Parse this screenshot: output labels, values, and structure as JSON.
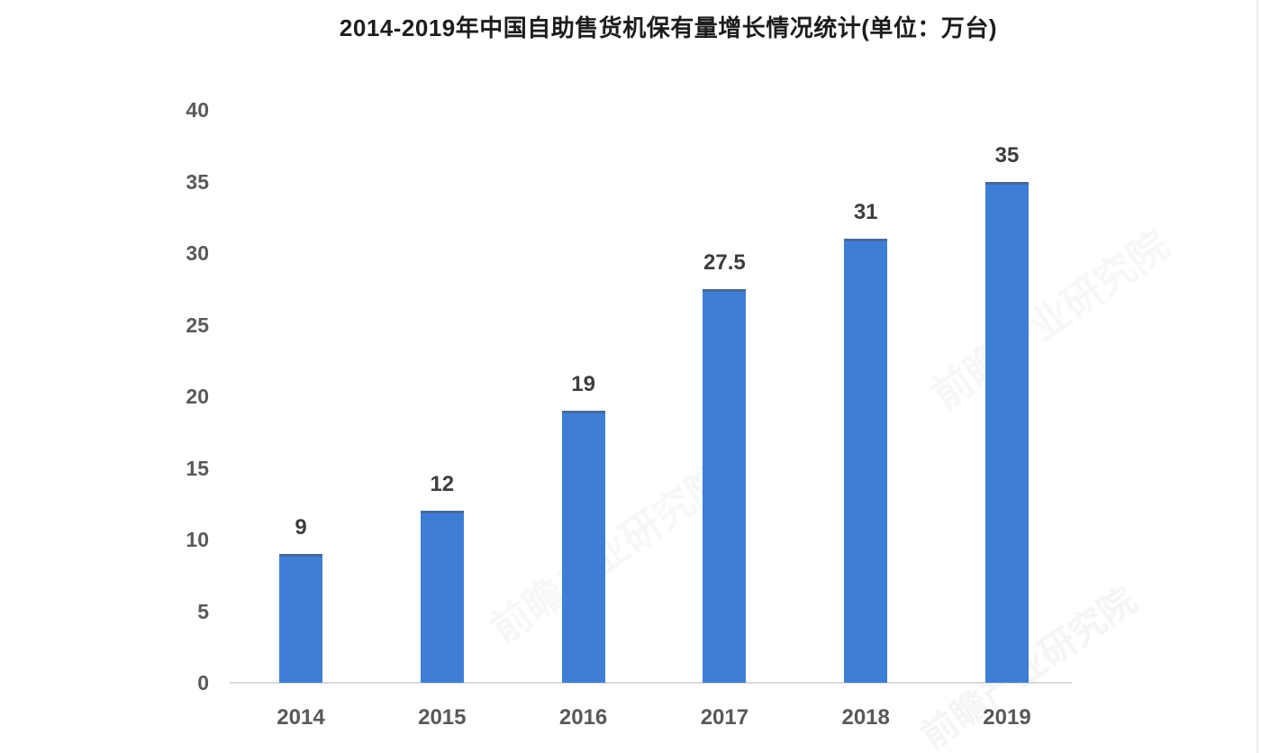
{
  "chart_data": {
    "type": "bar",
    "title": "2014-2019年中国自助售货机保有量增长情况统计(单位：万台)",
    "categories": [
      "2014",
      "2015",
      "2016",
      "2017",
      "2018",
      "2019"
    ],
    "values": [
      9,
      12,
      19,
      27.5,
      31,
      35
    ],
    "data_labels": [
      "9",
      "12",
      "19",
      "27.5",
      "31",
      "35"
    ],
    "yticks": [
      0,
      5,
      10,
      15,
      20,
      25,
      30,
      35,
      40
    ],
    "ylim": [
      0,
      40
    ],
    "xlabel": "",
    "ylabel": "",
    "grid": false,
    "legend": false,
    "bar_color": "#3e7ed6",
    "axis_line_color": "#d9d9d9",
    "tick_label_color": "#595959",
    "data_label_color": "#3d3d3d",
    "title_color": "#1d1d1d"
  },
  "watermark": {
    "text": "前瞻产业研究院"
  }
}
